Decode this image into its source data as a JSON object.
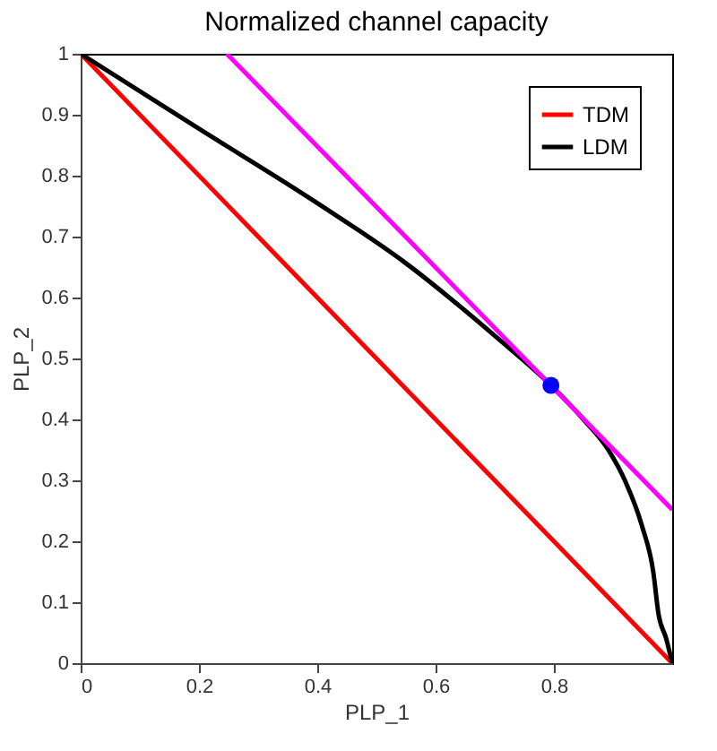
{
  "chart_data": {
    "type": "line",
    "title": "Normalized channel capacity",
    "xlabel": "PLP_1",
    "ylabel": "PLP_2",
    "xlim": [
      0,
      1
    ],
    "ylim": [
      0,
      1
    ],
    "xticks": [
      0,
      0.2,
      0.4,
      0.6,
      0.8
    ],
    "yticks": [
      0,
      0.1,
      0.2,
      0.3,
      0.4,
      0.5,
      0.6,
      0.7,
      0.8,
      0.9,
      1
    ],
    "grid": false,
    "legend": "top right",
    "marker": "none",
    "line_style": "solid",
    "series": [
      {
        "name": "TDM",
        "color": "#ff0000",
        "x": [
          0,
          1
        ],
        "values": [
          1,
          0
        ]
      },
      {
        "name": "LDM",
        "color": "#000000",
        "x": [
          0,
          0.2,
          0.4,
          0.546,
          0.704,
          0.795,
          0.85,
          0.892,
          0.92,
          0.949,
          0.968,
          0.977,
          0.99,
          1
        ],
        "values": [
          1,
          0.877,
          0.755,
          0.659,
          0.534,
          0.456,
          0.4,
          0.35,
          0.3,
          0.225,
          0.15,
          0.08,
          0.04,
          0
        ]
      },
      {
        "color": "#ff00ff",
        "x": [
          0.247,
          1
        ],
        "values": [
          1,
          0.252
        ]
      },
      {
        "type": "scatter",
        "marker": "circle",
        "color": "#0000ff",
        "x": [
          0.795
        ],
        "values": [
          0.456
        ]
      }
    ]
  }
}
